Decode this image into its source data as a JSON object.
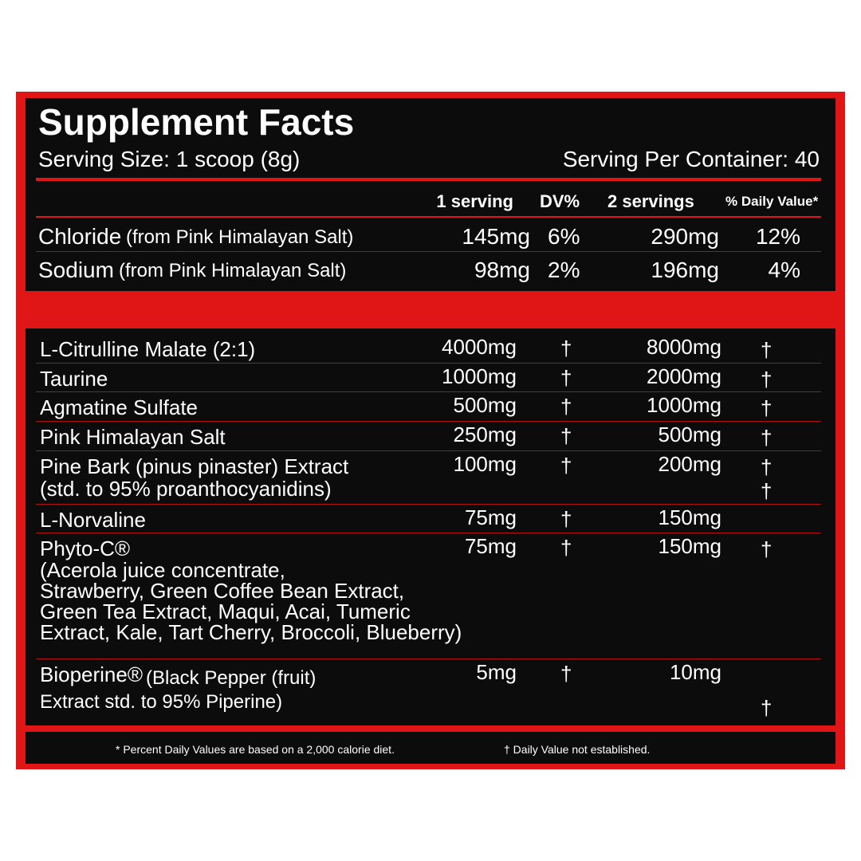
{
  "header": {
    "title": "Supplement Facts",
    "serving_size": "Serving Size: 1 scoop (8g)",
    "servings_per_container": "Serving Per Container: 40"
  },
  "columns": [
    "1 serving",
    "DV%",
    "2 servings",
    "% Daily Value*"
  ],
  "minerals": [
    {
      "name": "Chloride",
      "source": "(from Pink Himalayan Salt)",
      "serving1": "145mg",
      "dv1": "6%",
      "serving2": "290mg",
      "dv2": "12%"
    },
    {
      "name": "Sodium",
      "source": "(from Pink Himalayan Salt)",
      "serving1": "98mg",
      "dv1": "2%",
      "serving2": "196mg",
      "dv2": "4%"
    }
  ],
  "ingredients": [
    {
      "name": "L-Citrulline Malate (2:1)",
      "serving1": "4000mg",
      "dv1": "†",
      "serving2": "8000mg",
      "dv2": "†"
    },
    {
      "name": "Taurine",
      "serving1": "1000mg",
      "dv1": "†",
      "serving2": "2000mg",
      "dv2": "†"
    },
    {
      "name": "Agmatine Sulfate",
      "serving1": "500mg",
      "dv1": "†",
      "serving2": "1000mg",
      "dv2": "†"
    },
    {
      "name": "Pink Himalayan Salt",
      "serving1": "250mg",
      "dv1": "†",
      "serving2": "500mg",
      "dv2": "†"
    },
    {
      "name": "Pine Bark (pinus pinaster) Extract\n(std. to 95% proanthocyanidins)",
      "serving1": "100mg",
      "dv1": "†",
      "serving2": "200mg",
      "dv2": "†\n†"
    },
    {
      "name": "L-Norvaline",
      "serving1": "75mg",
      "dv1": "†",
      "serving2": "150mg"
    },
    {
      "name": "Phyto-C®",
      "description": "(Acerola juice concentrate,\nStrawberry, Green Coffee Bean Extract,\nGreen Tea Extract, Maqui, Acai, Tumeric\nExtract, Kale, Tart Cherry, Broccoli, Blueberry)",
      "serving1": "75mg",
      "dv1": "†",
      "serving2": "150mg",
      "dv2": "†"
    },
    {
      "name": "Bioperine®",
      "description": "(Black Pepper (fruit)\nExtract std. to 95% Piperine)",
      "serving1": "5mg",
      "dv1": "†",
      "serving2": "10mg",
      "dv2": "†"
    }
  ],
  "footnotes": [
    "* Percent Daily Values are based on a 2,000 calorie diet.",
    "† Daily Value not established."
  ]
}
